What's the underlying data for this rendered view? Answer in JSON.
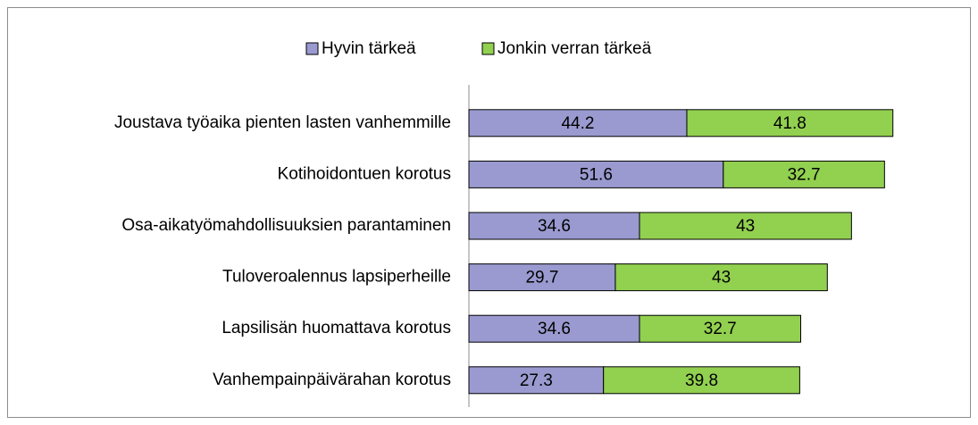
{
  "chart_data": {
    "type": "stacked-bar",
    "orientation": "horizontal",
    "categories": [
      "Joustava työaika pienten lasten vanhemmille",
      "Kotihoidontuen korotus",
      "Osa-aikatyömahdollisuuksien parantaminen",
      "Tuloveroalennus lapsiperheille",
      "Lapsilisän huomattava korotus",
      "Vanhempainpäivärahan korotus"
    ],
    "series": [
      {
        "name": "Hyvin tärkeä",
        "color": "#9a9ad0",
        "values": [
          44.2,
          51.6,
          34.6,
          29.7,
          34.6,
          27.3
        ]
      },
      {
        "name": "Jonkin verran tärkeä",
        "color": "#92d050",
        "values": [
          41.8,
          32.7,
          43,
          43,
          32.7,
          39.8
        ]
      }
    ],
    "xlim": [
      0,
      100
    ],
    "legend": "top",
    "data_labels": true
  }
}
